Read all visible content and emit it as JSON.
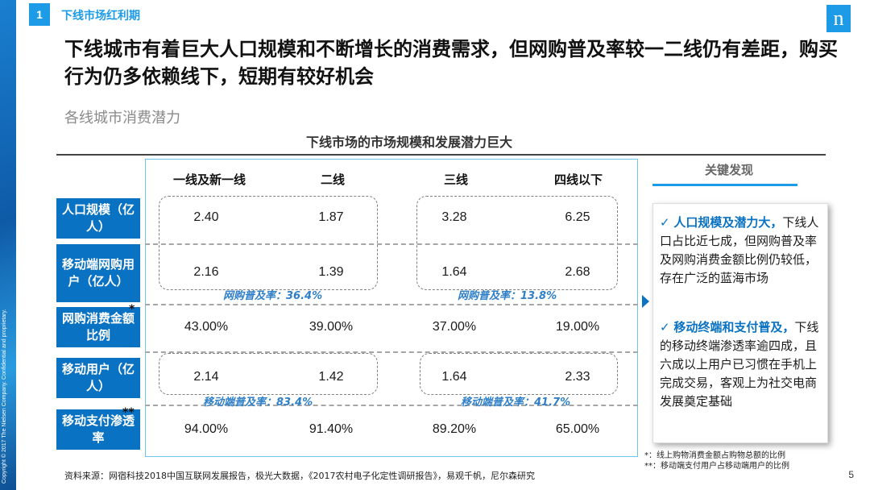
{
  "sidebar": {
    "copyright": "Copyright © 2017 The Nielsen Company. Confidential and proprietary."
  },
  "section": {
    "number": "1",
    "title": "下线市场红利期"
  },
  "logo": {
    "text": "n"
  },
  "headline": "下线城市有着巨大人口规模和不断增长的消费需求，但网购普及率较一二线仍有差距，购买行为仍多依赖线下，短期有较好机会",
  "subheading": "各线城市消费潜力",
  "chart_title": "下线市场的市场规模和发展潜力巨大",
  "table": {
    "columns": [
      "一线及新一线",
      "二线",
      "三线",
      "四线以下"
    ],
    "rows": [
      {
        "label": "人口规模（亿人）",
        "values": [
          "2.40",
          "1.87",
          "3.28",
          "6.25"
        ]
      },
      {
        "label": "移动端网购用户（亿人）",
        "values": [
          "2.16",
          "1.39",
          "1.64",
          "2.68"
        ]
      },
      {
        "label": "网购消费金额比例",
        "values": [
          "43.00%",
          "39.00%",
          "37.00%",
          "19.00%"
        ]
      },
      {
        "label": "移动用户（亿人）",
        "values": [
          "2.14",
          "1.42",
          "1.64",
          "2.33"
        ]
      },
      {
        "label": "移动支付渗透率",
        "values": [
          "94.00%",
          "91.40%",
          "89.20%",
          "65.00%"
        ]
      }
    ],
    "markers": {
      "star1": "*",
      "star2": "**"
    },
    "rates": {
      "online_left": "网购普及率：36.4%",
      "online_right": "网购普及率：13.8%",
      "mobile_left": "移动端普及率：83.4%",
      "mobile_right": "移动端普及率：41.7%"
    }
  },
  "key_findings": {
    "title": "关键发现",
    "items": [
      {
        "check": "✓",
        "highlight": "人口规模及潜力大，",
        "text": "下线人口占比近七成，但网购普及率及网购消费金额比例仍较低，存在广泛的蓝海市场"
      },
      {
        "check": "✓",
        "highlight": "移动终端和支付普及，",
        "text": "下线的移动终端渗透率逾四成，且六成以上用户已习惯在手机上完成交易，客观上为社交电商发展奠定基础"
      }
    ]
  },
  "footnotes": [
    "*：线上购物消费金额占购物总额的比例",
    "**：移动端支付用户占移动端用户的比例"
  ],
  "source": "资料来源：网宿科技2018中国互联网发展报告，极光大数据，《2017农村电子化定性调研报告》，易观千帆，尼尔森研究",
  "page_number": "5"
}
